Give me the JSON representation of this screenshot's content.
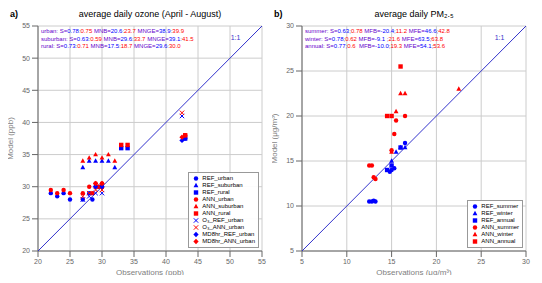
{
  "chart_data": [
    {
      "type": "scatter",
      "title": "average daily ozone (April - August)",
      "x_label": "Observations (ppb)",
      "y_label": "Model (ppb)",
      "xlim": [
        20,
        55
      ],
      "ylim": [
        20,
        55
      ],
      "xticks": [
        20,
        25,
        30,
        35,
        40,
        45,
        50,
        55
      ],
      "yticks": [
        20,
        25,
        30,
        35,
        40,
        45,
        50,
        55
      ],
      "grid": true,
      "legend": "lower right",
      "annotations": [
        {
          "text": "a)"
        },
        {
          "text": "1:1",
          "color": "#3333cc"
        },
        {
          "parts": [
            {
              "text": "urban: S=",
              "color": "#6600cc"
            },
            {
              "text": "0.78",
              "color": "blue"
            },
            {
              "text": ":",
              "color": "#6600cc"
            },
            {
              "text": "0.75",
              "color": "red"
            },
            {
              "text": " MNB=",
              "color": "#6600cc"
            },
            {
              "text": "20.6",
              "color": "blue"
            },
            {
              "text": ":",
              "color": "#6600cc"
            },
            {
              "text": "23.7",
              "color": "red"
            },
            {
              "text": " MNGE=",
              "color": "#6600cc"
            },
            {
              "text": "38.9",
              "color": "blue"
            },
            {
              "text": ":",
              "color": "#6600cc"
            },
            {
              "text": "39.9",
              "color": "red"
            }
          ]
        },
        {
          "parts": [
            {
              "text": "suburban: S=",
              "color": "#6600cc"
            },
            {
              "text": "0.63",
              "color": "blue"
            },
            {
              "text": ":",
              "color": "#6600cc"
            },
            {
              "text": "0.59",
              "color": "red"
            },
            {
              "text": " MNB=",
              "color": "#6600cc"
            },
            {
              "text": "29.6",
              "color": "blue"
            },
            {
              "text": ":",
              "color": "#6600cc"
            },
            {
              "text": "33.7",
              "color": "red"
            },
            {
              "text": " MNGE=",
              "color": "#6600cc"
            },
            {
              "text": "39.1",
              "color": "blue"
            },
            {
              "text": ":",
              "color": "#6600cc"
            },
            {
              "text": "41.5",
              "color": "red"
            }
          ]
        },
        {
          "parts": [
            {
              "text": "rural: S=",
              "color": "#6600cc"
            },
            {
              "text": "0.73",
              "color": "blue"
            },
            {
              "text": ":",
              "color": "#6600cc"
            },
            {
              "text": "0.71",
              "color": "red"
            },
            {
              "text": " MNB=",
              "color": "#6600cc"
            },
            {
              "text": "17.5",
              "color": "blue"
            },
            {
              "text": ":",
              "color": "#6600cc"
            },
            {
              "text": "18.7",
              "color": "red"
            },
            {
              "text": " MNGE=",
              "color": "#6600cc"
            },
            {
              "text": "29.6",
              "color": "blue"
            },
            {
              "text": ":",
              "color": "#6600cc"
            },
            {
              "text": "30.0",
              "color": "red"
            }
          ]
        }
      ],
      "series": [
        {
          "type": "line",
          "color": "#3333cc",
          "line_style": "solid",
          "x": [
            20,
            55
          ],
          "values": [
            20,
            55
          ]
        },
        {
          "name": "REF_urban",
          "color": "blue",
          "marker": "circle",
          "x": [
            22,
            23,
            24,
            25,
            27,
            28,
            28.5,
            29,
            29.5,
            30,
            43
          ],
          "values": [
            29,
            28.5,
            29,
            28,
            28,
            29,
            28,
            30,
            30,
            30,
            37.5
          ]
        },
        {
          "name": "REF_suburban",
          "color": "blue",
          "marker": "triangle",
          "x": [
            27,
            28,
            29,
            30,
            31,
            32
          ],
          "values": [
            33,
            34,
            34,
            34,
            34,
            33
          ]
        },
        {
          "name": "REF_rural",
          "color": "blue",
          "marker": "square",
          "x": [
            33,
            34,
            43
          ],
          "values": [
            36,
            36,
            37.5
          ]
        },
        {
          "name": "ANN_urban",
          "color": "red",
          "marker": "circle",
          "x": [
            22,
            23,
            24,
            25,
            27,
            28,
            28.5,
            29,
            29.5,
            30,
            43
          ],
          "values": [
            29.5,
            29,
            29.5,
            29,
            29,
            30,
            29,
            30.5,
            30,
            30.5,
            38
          ]
        },
        {
          "name": "ANN_suburban",
          "color": "red",
          "marker": "triangle",
          "x": [
            27,
            28,
            29,
            30,
            31,
            32
          ],
          "values": [
            34,
            34.5,
            35,
            34.5,
            35,
            34
          ]
        },
        {
          "name": "ANN_rural",
          "color": "red",
          "marker": "square",
          "x": [
            33,
            34,
            43
          ],
          "values": [
            36.5,
            36.5,
            38
          ]
        },
        {
          "name": "O₃_REF_urban",
          "color": "blue",
          "marker": "x",
          "x": [
            27,
            28,
            29,
            30,
            42.5
          ],
          "values": [
            28,
            28.5,
            29,
            29,
            41
          ]
        },
        {
          "name": "O₃_ANN_urban",
          "color": "red",
          "marker": "x",
          "x": [
            27,
            28,
            29,
            30,
            42.5
          ],
          "values": [
            28.5,
            29,
            29.5,
            29.5,
            41.5
          ]
        },
        {
          "name": "MD8hr_REF_urban",
          "color": "blue",
          "marker": "diamond",
          "x": [
            29,
            30,
            42.5
          ],
          "values": [
            30,
            30,
            37.2
          ]
        },
        {
          "name": "MD8hr_ANN_urban",
          "color": "red",
          "marker": "diamond",
          "x": [
            29,
            30,
            42.5
          ],
          "values": [
            30.5,
            30.5,
            37.7
          ]
        }
      ]
    },
    {
      "type": "scatter",
      "title": "average daily PM₂.₅",
      "x_label": "Observations (μg/m³)",
      "y_label": "Model (μg/m³)",
      "xlim": [
        5,
        30
      ],
      "ylim": [
        5,
        30
      ],
      "xticks": [
        5,
        10,
        15,
        20,
        25,
        30
      ],
      "yticks": [
        5,
        10,
        15,
        20,
        25,
        30
      ],
      "grid": true,
      "legend": "lower right",
      "annotations": [
        {
          "text": "b)"
        },
        {
          "text": "1:1",
          "color": "#3333cc"
        },
        {
          "parts": [
            {
              "text": "summer: S=",
              "color": "#6600cc"
            },
            {
              "text": "0.63",
              "color": "blue"
            },
            {
              "text": ";",
              "color": "#6600cc"
            },
            {
              "text": "0.78",
              "color": "red"
            },
            {
              "text": " MFB=",
              "color": "#6600cc"
            },
            {
              "text": "-20.4",
              "color": "blue"
            },
            {
              "text": ";",
              "color": "#6600cc"
            },
            {
              "text": "11.2",
              "color": "red"
            },
            {
              "text": " MFE=",
              "color": "#6600cc"
            },
            {
              "text": "46.6",
              "color": "blue"
            },
            {
              "text": ";",
              "color": "#6600cc"
            },
            {
              "text": "42.8",
              "color": "red"
            }
          ]
        },
        {
          "parts": [
            {
              "text": "winter: S=",
              "color": "#6600cc"
            },
            {
              "text": "0.78",
              "color": "blue"
            },
            {
              "text": ";",
              "color": "#6600cc"
            },
            {
              "text": "0.62",
              "color": "red"
            },
            {
              "text": " MFB=",
              "color": "#6600cc"
            },
            {
              "text": "-9.1",
              "color": "blue"
            },
            {
              "text": " ;",
              "color": "#6600cc"
            },
            {
              "text": "21.6",
              "color": "red"
            },
            {
              "text": " MFE=",
              "color": "#6600cc"
            },
            {
              "text": "63.5",
              "color": "blue"
            },
            {
              "text": ";",
              "color": "#6600cc"
            },
            {
              "text": "63.8",
              "color": "red"
            }
          ]
        },
        {
          "parts": [
            {
              "text": "annual: S=",
              "color": "#6600cc"
            },
            {
              "text": "0.77",
              "color": "blue"
            },
            {
              "text": ";",
              "color": "#6600cc"
            },
            {
              "text": "0.6",
              "color": "red"
            },
            {
              "text": "  MFB=",
              "color": "#6600cc"
            },
            {
              "text": "-10.0",
              "color": "blue"
            },
            {
              "text": ";",
              "color": "#6600cc"
            },
            {
              "text": "19.3",
              "color": "red"
            },
            {
              "text": " MFE=",
              "color": "#6600cc"
            },
            {
              "text": "54.1",
              "color": "blue"
            },
            {
              "text": ";",
              "color": "#6600cc"
            },
            {
              "text": "53.6",
              "color": "red"
            }
          ]
        }
      ],
      "series": [
        {
          "type": "line",
          "color": "#3333cc",
          "line_style": "solid",
          "x": [
            5,
            30
          ],
          "values": [
            5,
            30
          ]
        },
        {
          "name": "REF_summer",
          "color": "blue",
          "marker": "circle",
          "x": [
            12.5,
            12.8,
            13.0,
            13.2,
            14.8,
            15.0,
            15.3,
            16.5
          ],
          "values": [
            10.5,
            10.5,
            10.6,
            10.5,
            13.8,
            14.0,
            14.2,
            17.0
          ]
        },
        {
          "name": "REF_winter",
          "color": "blue",
          "marker": "triangle",
          "x": [
            15.0,
            15.5,
            16.0,
            16.5
          ],
          "values": [
            15.0,
            16.0,
            16.5,
            16.5
          ]
        },
        {
          "name": "REF_annual",
          "color": "blue",
          "marker": "square",
          "x": [
            14.5,
            15.0,
            16.0
          ],
          "values": [
            14.0,
            14.5,
            16.5
          ]
        },
        {
          "name": "ANN_summer",
          "color": "red",
          "marker": "circle",
          "x": [
            12.5,
            12.8,
            13.0,
            13.2,
            15.0,
            15.3,
            15.5,
            16.5
          ],
          "values": [
            14.5,
            14.5,
            13.2,
            13.0,
            16.2,
            18.0,
            19.5,
            20.0
          ]
        },
        {
          "name": "ANN_winter",
          "color": "red",
          "marker": "triangle",
          "x": [
            15.0,
            15.5,
            16.0,
            16.5,
            22.5
          ],
          "values": [
            16.0,
            20.5,
            22.5,
            22.5,
            23.0
          ]
        },
        {
          "name": "ANN_annual",
          "color": "red",
          "marker": "square",
          "x": [
            14.5,
            15.0,
            16.0
          ],
          "values": [
            20.0,
            20.0,
            25.5
          ]
        }
      ]
    }
  ]
}
